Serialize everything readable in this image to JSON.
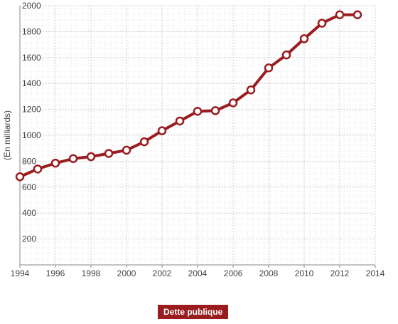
{
  "chart_data": {
    "type": "line",
    "title": "",
    "xlabel": "",
    "ylabel": "(En milliards)",
    "xlim": [
      1994,
      2014
    ],
    "ylim": [
      0,
      2000
    ],
    "x_ticks": [
      1994,
      1996,
      1998,
      2000,
      2002,
      2004,
      2006,
      2008,
      2010,
      2012,
      2014
    ],
    "y_ticks": [
      200,
      400,
      600,
      800,
      1000,
      1200,
      1400,
      1600,
      1800,
      2000
    ],
    "grid": true,
    "legend_position": "bottom-center",
    "colors": {
      "series": "#9b1c1f",
      "marker_fill": "#ffffff",
      "legend_bg": "#9b1c1f",
      "grid": "#cfcfcf",
      "axis": "#888888"
    },
    "series": [
      {
        "name": "Dette publique",
        "x": [
          1994,
          1995,
          1996,
          1997,
          1998,
          1999,
          2000,
          2001,
          2002,
          2003,
          2004,
          2005,
          2006,
          2007,
          2008,
          2009,
          2010,
          2011,
          2012,
          2013
        ],
        "values": [
          680,
          740,
          785,
          820,
          835,
          860,
          885,
          950,
          1035,
          1110,
          1185,
          1190,
          1250,
          1350,
          1520,
          1620,
          1745,
          1865,
          1930,
          1930
        ]
      }
    ]
  }
}
